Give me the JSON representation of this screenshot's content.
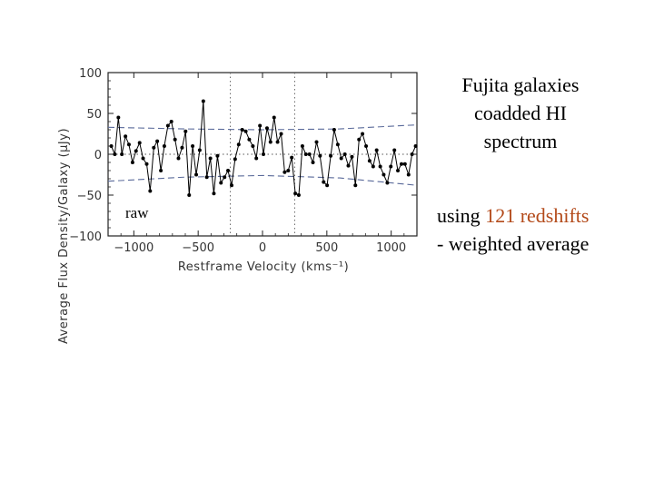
{
  "caption": {
    "title_lines": [
      "Fujita galaxies",
      "coadded HI",
      "spectrum"
    ],
    "sub_prefix": "using ",
    "sub_highlight": "121 redshifts",
    "sub_line2": "- weighted average"
  },
  "colors": {
    "highlight": "#b34a1a",
    "dashed_envelope": "#5a6a9a",
    "data_line": "#000000"
  },
  "chart_data": {
    "type": "line",
    "xlabel": "Restframe Velocity (kms⁻¹)",
    "ylabel": "Average Flux Density/Galaxy (μJy)",
    "panel_label": "raw",
    "xlim": [
      -1200,
      1200
    ],
    "ylim": [
      -100,
      100
    ],
    "xticks": [
      -1000,
      -500,
      0,
      500,
      1000
    ],
    "xtick_labels": [
      "−1000",
      "−500",
      "0",
      "500",
      "1000"
    ],
    "yticks": [
      100,
      50,
      0,
      -50,
      -100
    ],
    "ytick_labels": [
      "100",
      "50",
      "0",
      "−50",
      "−100"
    ],
    "velocity_window": [
      -250,
      250
    ],
    "envelope_upper": [
      [
        -1200,
        33
      ],
      [
        -600,
        31
      ],
      [
        0,
        30
      ],
      [
        600,
        31
      ],
      [
        1200,
        36
      ]
    ],
    "envelope_lower": [
      [
        -1200,
        -33
      ],
      [
        -600,
        -28
      ],
      [
        0,
        -26
      ],
      [
        600,
        -29
      ],
      [
        1200,
        -38
      ]
    ],
    "zero_line": 0,
    "series": [
      {
        "x": [
          -1175,
          -1148,
          -1120,
          -1093,
          -1065,
          -1038,
          -1010,
          -983,
          -955,
          -928,
          -900,
          -873,
          -845,
          -818,
          -790,
          -763,
          -735,
          -708,
          -680,
          -653,
          -625,
          -598,
          -570,
          -543,
          -515,
          -488,
          -460,
          -433,
          -405,
          -378,
          -350,
          -323,
          -295,
          -268,
          -240,
          -213,
          -185,
          -158,
          -130,
          -103,
          -75,
          -48,
          -20,
          7,
          35,
          62,
          90,
          117,
          145,
          172,
          200,
          227,
          255,
          282,
          310,
          337,
          365,
          392,
          420,
          447,
          475,
          502,
          530,
          557,
          585,
          612,
          640,
          667,
          695,
          722,
          750,
          777,
          805,
          832,
          860,
          887,
          915,
          942,
          970,
          997,
          1025,
          1052,
          1080,
          1107,
          1135,
          1162,
          1190
        ],
        "values": [
          10,
          0,
          45,
          0,
          22,
          12,
          -10,
          4,
          14,
          -5,
          -12,
          -45,
          8,
          16,
          -20,
          10,
          35,
          40,
          18,
          -5,
          8,
          28,
          -50,
          10,
          -25,
          5,
          65,
          -28,
          -5,
          -48,
          -2,
          -35,
          -28,
          -20,
          -38,
          -6,
          12,
          30,
          28,
          18,
          10,
          -5,
          35,
          0,
          32,
          15,
          45,
          15,
          25,
          -22,
          -20,
          -4,
          -48,
          -50,
          10,
          0,
          0,
          -10,
          15,
          -2,
          -34,
          -38,
          -2,
          30,
          12,
          -5,
          0,
          -14,
          -3,
          -38,
          18,
          25,
          10,
          -8,
          -15,
          5,
          -15,
          -25,
          -35,
          -15,
          5,
          -20,
          -12,
          -12,
          -25,
          0,
          10
        ]
      }
    ]
  }
}
